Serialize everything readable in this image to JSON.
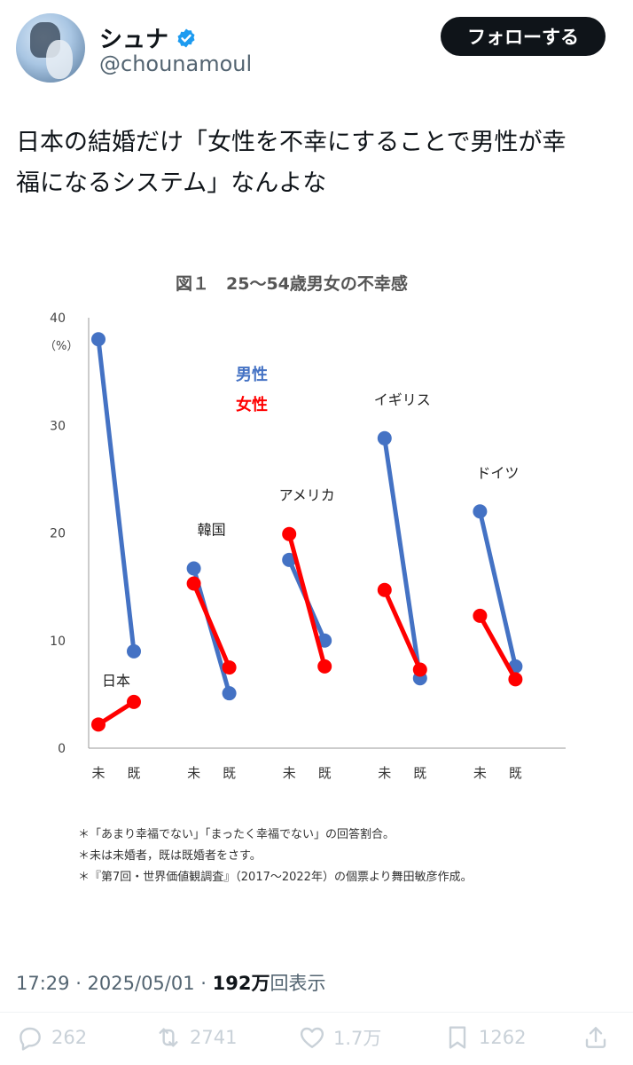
{
  "user": {
    "name": "シュナ",
    "handle": "@chounamoul",
    "follow_label": "フォローする"
  },
  "tweet": {
    "text": "日本の結婚だけ「女性を不幸にすることで男性が幸\n福になるシステム」なんよな"
  },
  "chart": {
    "title": "図１　25〜54歳男女の不幸感",
    "y_unit": "（%）",
    "legend_male": "男性",
    "legend_female": "女性",
    "note1": "＊「あまり幸福でない」「まったく幸福でない」の回答割合。",
    "note2": "＊未は未婚者，既は既婚者をさす。",
    "note3": "＊『第7回・世界価値観調査』（2017〜2022年）の個票より舞田敏彦作成。",
    "colors": {
      "male": "#4472c4",
      "female": "#ff0000"
    }
  },
  "chart_data": {
    "type": "line",
    "title": "図１　25〜54歳男女の不幸感",
    "ylabel": "（%）",
    "ylim": [
      0,
      40
    ],
    "yticks": [
      0,
      10,
      20,
      30,
      40
    ],
    "x_categories": [
      "未",
      "既"
    ],
    "groups": [
      {
        "country": "日本",
        "male": [
          38.0,
          9.0
        ],
        "female": [
          2.2,
          4.3
        ]
      },
      {
        "country": "韓国",
        "male": [
          16.7,
          5.1
        ],
        "female": [
          15.3,
          7.5
        ]
      },
      {
        "country": "アメリカ",
        "male": [
          17.5,
          10.0
        ],
        "female": [
          19.9,
          7.6
        ]
      },
      {
        "country": "イギリス",
        "male": [
          28.8,
          6.5
        ],
        "female": [
          14.7,
          7.3
        ]
      },
      {
        "country": "ドイツ",
        "male": [
          22.0,
          7.6
        ],
        "female": [
          12.3,
          6.4
        ]
      }
    ],
    "series": [
      {
        "name": "男性",
        "key": "male"
      },
      {
        "name": "女性",
        "key": "female"
      }
    ]
  },
  "meta": {
    "time": "17:29 · 2025/05/01 · ",
    "views_num": "192万",
    "views_label": "回表示"
  },
  "actions": {
    "replies": "262",
    "reposts": "2741",
    "likes": "1.7万",
    "bookmarks": "1262"
  }
}
